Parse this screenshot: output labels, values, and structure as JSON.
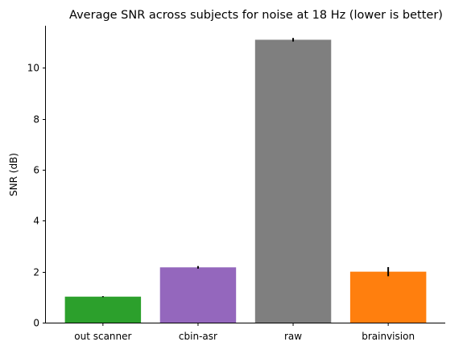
{
  "chart_data": {
    "type": "bar",
    "title": "Average SNR across subjects for noise at 18 Hz (lower is better)",
    "xlabel": "",
    "ylabel": "SNR (dB)",
    "categories": [
      "out scanner",
      "cbin-asr",
      "raw",
      "brainvision"
    ],
    "values": [
      1.02,
      2.17,
      11.1,
      2.0
    ],
    "errors": [
      0.02,
      0.05,
      0.07,
      0.18
    ],
    "colors": [
      "#2ca02c",
      "#9467bd",
      "#7f7f7f",
      "#ff7f0e"
    ],
    "ylim": [
      0,
      11.65
    ],
    "yticks": [
      0,
      2,
      4,
      6,
      8,
      10
    ],
    "grid": false
  }
}
